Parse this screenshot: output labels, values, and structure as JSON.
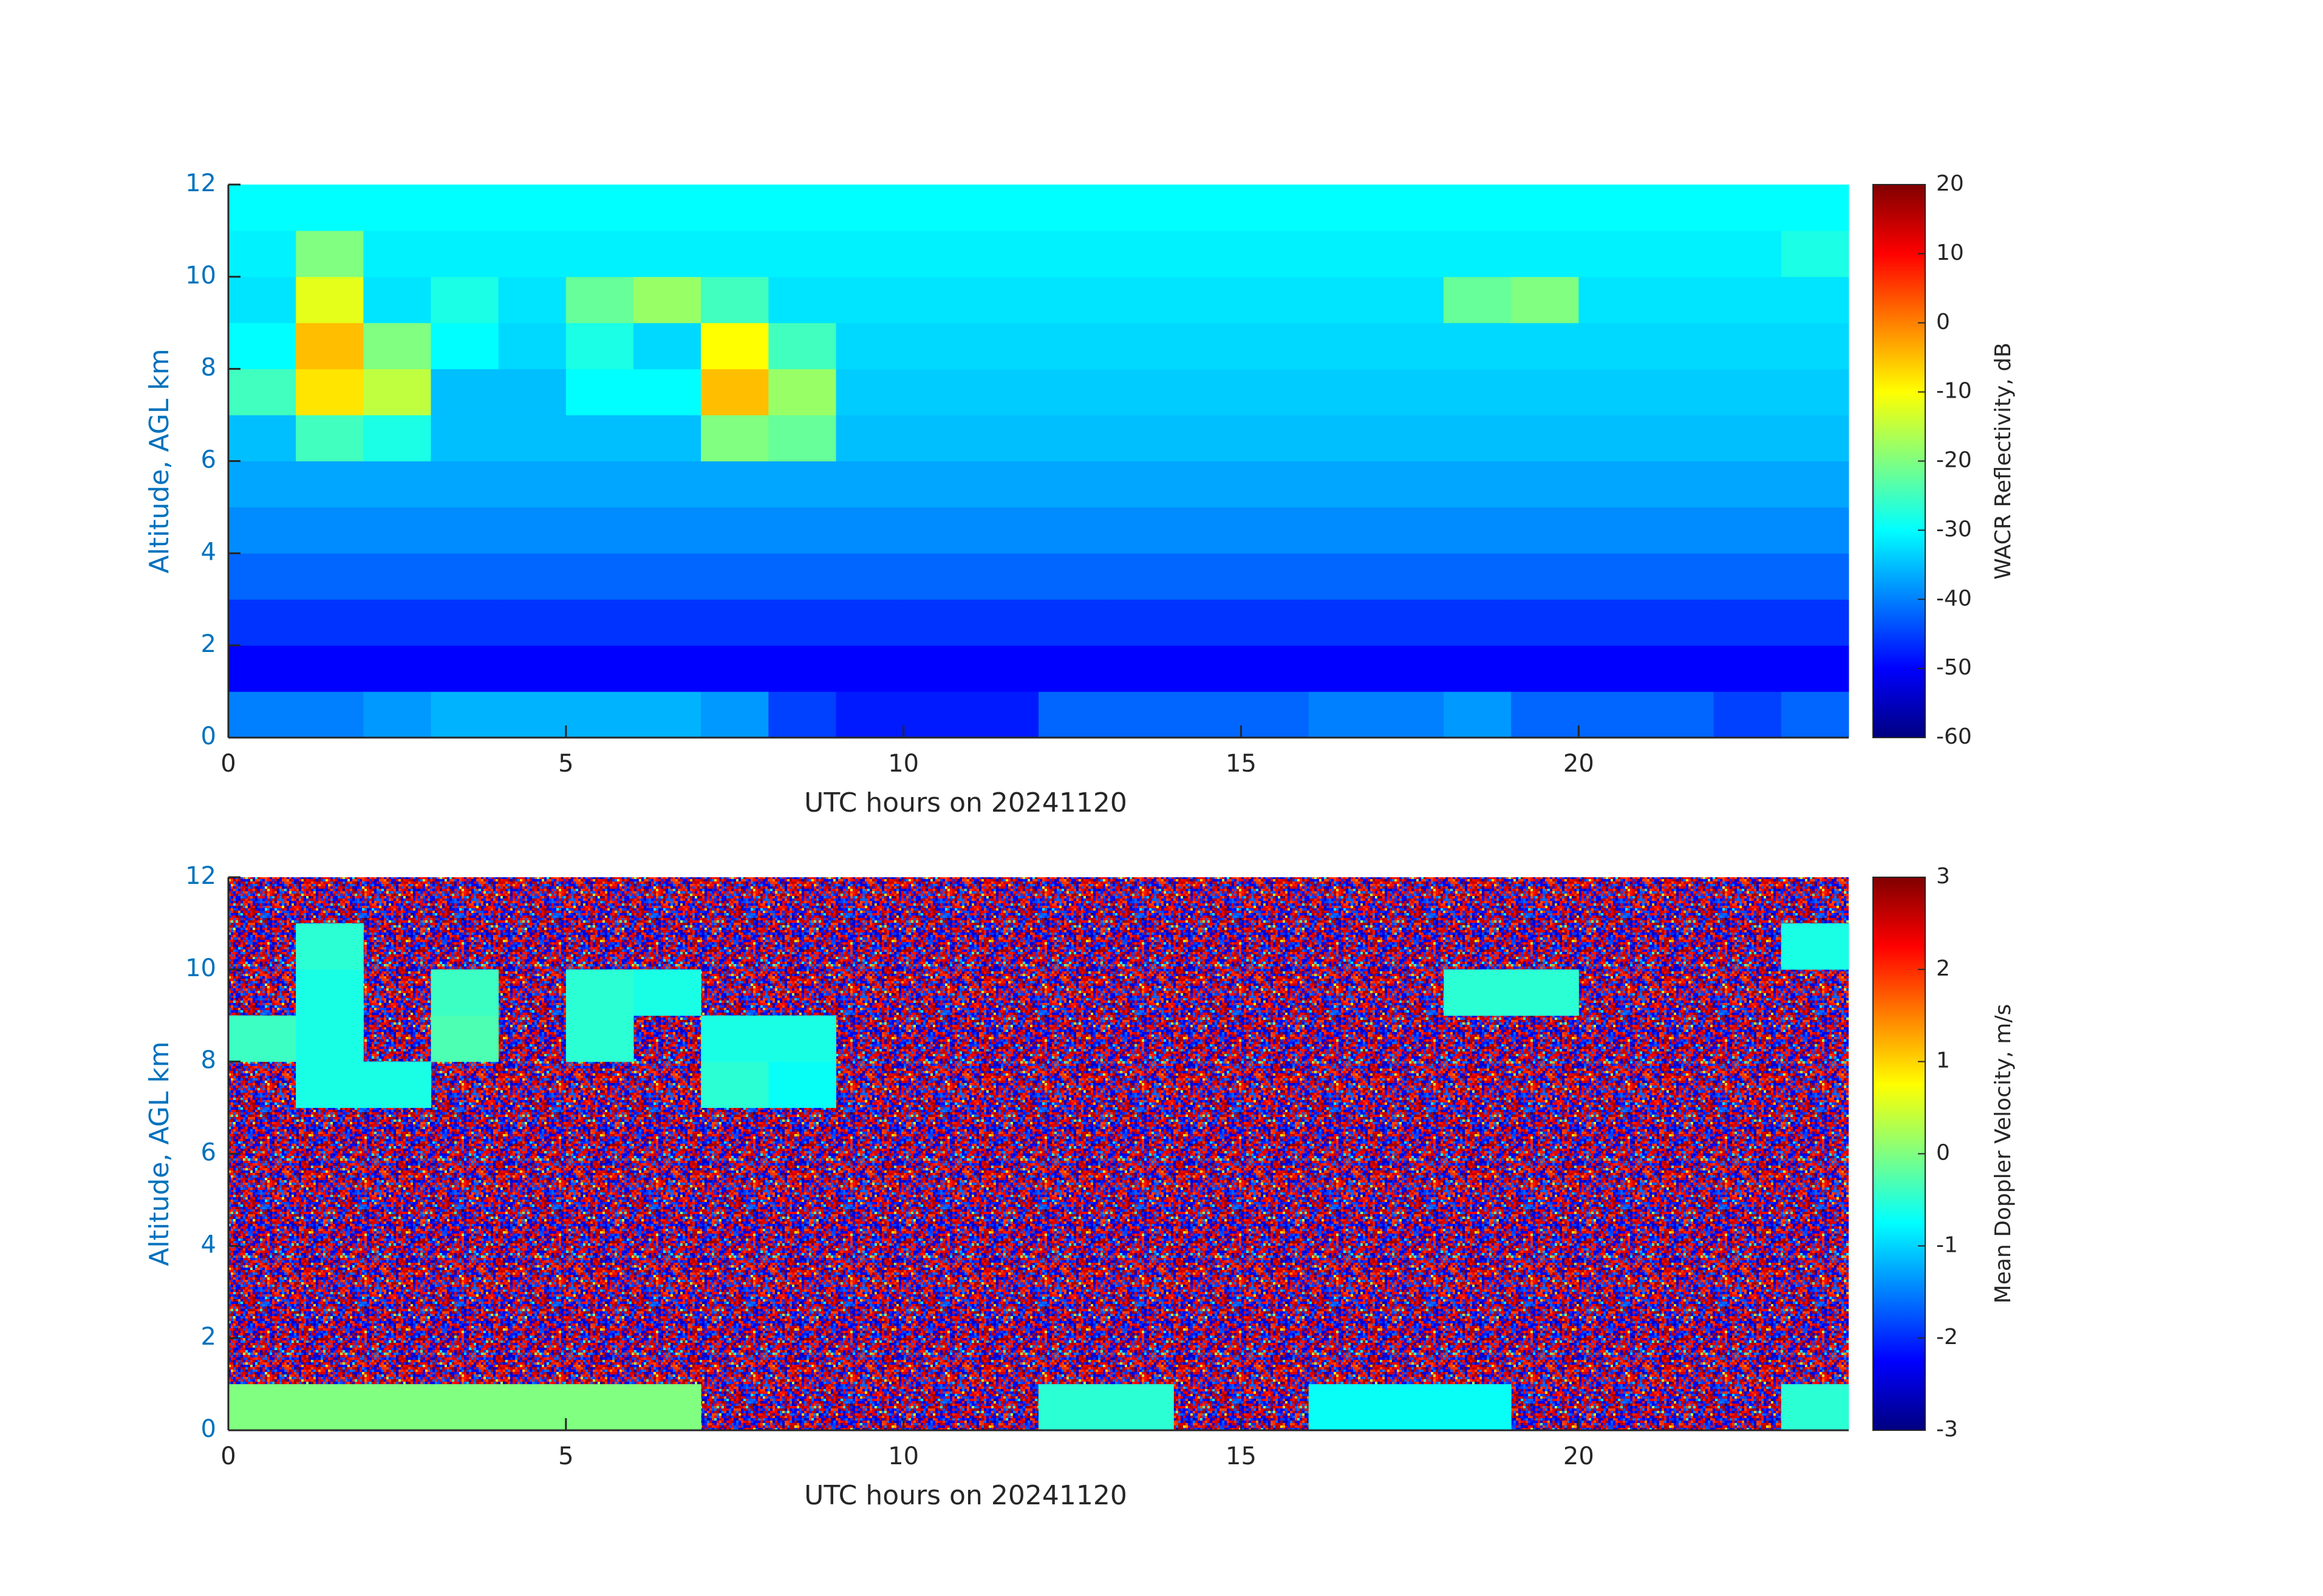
{
  "chart_data": [
    {
      "type": "heatmap",
      "xlabel": "UTC hours on 20241120",
      "ylabel": "Altitude, AGL km",
      "colorbar_label": "WACR Reflectivity, dB",
      "xlim": [
        0,
        24
      ],
      "xticks": [
        0,
        5,
        10,
        15,
        20
      ],
      "ylim": [
        0,
        12
      ],
      "yticks": [
        0,
        2,
        4,
        6,
        8,
        10,
        12
      ],
      "clim": [
        -60,
        20
      ],
      "cticks": [
        -60,
        -50,
        -40,
        -30,
        -20,
        -10,
        0,
        10,
        20
      ],
      "colormap": "jet",
      "x_bins": [
        0,
        1,
        2,
        3,
        4,
        5,
        6,
        7,
        8,
        9,
        10,
        11,
        12,
        13,
        14,
        15,
        16,
        17,
        18,
        19,
        20,
        21,
        22,
        23,
        24
      ],
      "y_bins": [
        0,
        1,
        2,
        3,
        4,
        5,
        6,
        7,
        8,
        9,
        10,
        11,
        12
      ],
      "values": [
        [
          -40,
          -40,
          -38,
          -36,
          -36,
          -36,
          -36,
          -38,
          -45,
          -48,
          -48,
          -48,
          -42,
          -42,
          -42,
          -42,
          -40,
          -40,
          -38,
          -42,
          -42,
          -42,
          -45,
          -42
        ],
        [
          -50,
          -50,
          -50,
          -50,
          -50,
          -50,
          -50,
          -50,
          -50,
          -50,
          -50,
          -50,
          -50,
          -50,
          -50,
          -50,
          -50,
          -50,
          -50,
          -50,
          -50,
          -50,
          -50,
          -50
        ],
        [
          -46,
          -46,
          -46,
          -46,
          -46,
          -46,
          -46,
          -46,
          -46,
          -46,
          -46,
          -46,
          -46,
          -46,
          -46,
          -46,
          -46,
          -46,
          -46,
          -46,
          -46,
          -46,
          -46,
          -46
        ],
        [
          -42,
          -42,
          -42,
          -42,
          -42,
          -42,
          -42,
          -42,
          -42,
          -42,
          -42,
          -42,
          -42,
          -42,
          -42,
          -42,
          -42,
          -42,
          -42,
          -42,
          -42,
          -42,
          -42,
          -42
        ],
        [
          -39,
          -39,
          -39,
          -39,
          -39,
          -39,
          -39,
          -39,
          -39,
          -39,
          -39,
          -39,
          -39,
          -39,
          -39,
          -39,
          -39,
          -39,
          -39,
          -39,
          -39,
          -39,
          -39,
          -39
        ],
        [
          -37,
          -37,
          -37,
          -37,
          -37,
          -37,
          -37,
          -37,
          -37,
          -37,
          -37,
          -37,
          -37,
          -37,
          -37,
          -37,
          -37,
          -37,
          -37,
          -37,
          -37,
          -37,
          -37,
          -37
        ],
        [
          -35,
          -25,
          -28,
          -35,
          -35,
          -35,
          -35,
          -20,
          -22,
          -35,
          -35,
          -35,
          -35,
          -35,
          -35,
          -35,
          -35,
          -35,
          -35,
          -35,
          -35,
          -35,
          -35,
          -35
        ],
        [
          -25,
          -8,
          -15,
          -35,
          -35,
          -30,
          -30,
          -5,
          -18,
          -34,
          -34,
          -34,
          -34,
          -34,
          -34,
          -34,
          -34,
          -34,
          -34,
          -34,
          -34,
          -34,
          -34,
          -34
        ],
        [
          -30,
          -5,
          -20,
          -30,
          -33,
          -28,
          -33,
          -10,
          -25,
          -33,
          -33,
          -33,
          -33,
          -33,
          -33,
          -33,
          -33,
          -33,
          -33,
          -33,
          -33,
          -33,
          -33,
          -33
        ],
        [
          -32,
          -12,
          -32,
          -28,
          -32,
          -22,
          -18,
          -25,
          -32,
          -32,
          -32,
          -32,
          -32,
          -32,
          -32,
          -32,
          -32,
          -32,
          -22,
          -20,
          -32,
          -32,
          -32,
          -32
        ],
        [
          -31,
          -20,
          -31,
          -31,
          -31,
          -31,
          -31,
          -31,
          -31,
          -31,
          -31,
          -31,
          -31,
          -31,
          -31,
          -31,
          -31,
          -31,
          -31,
          -31,
          -31,
          -31,
          -31,
          -28
        ],
        [
          -30,
          -30,
          -30,
          -30,
          -30,
          -30,
          -30,
          -30,
          -30,
          -30,
          -30,
          -30,
          -30,
          -30,
          -30,
          -30,
          -30,
          -30,
          -30,
          -30,
          -30,
          -30,
          -30,
          -30
        ]
      ]
    },
    {
      "type": "heatmap",
      "xlabel": "UTC hours on 20241120",
      "ylabel": "Altitude, AGL km",
      "colorbar_label": "Mean Doppler Velocity, m/s",
      "xlim": [
        0,
        24
      ],
      "xticks": [
        0,
        5,
        10,
        15,
        20
      ],
      "ylim": [
        0,
        12
      ],
      "yticks": [
        0,
        2,
        4,
        6,
        8,
        10,
        12
      ],
      "clim": [
        -3,
        3
      ],
      "cticks": [
        -3,
        -2,
        -1,
        0,
        1,
        2,
        3
      ],
      "colormap": "jet",
      "x_bins": [
        0,
        1,
        2,
        3,
        4,
        5,
        6,
        7,
        8,
        9,
        10,
        11,
        12,
        13,
        14,
        15,
        16,
        17,
        18,
        19,
        20,
        21,
        22,
        23,
        24
      ],
      "y_bins": [
        0,
        1,
        2,
        3,
        4,
        5,
        6,
        7,
        8,
        9,
        10,
        11,
        12
      ],
      "values": [
        [
          0,
          0,
          0,
          0,
          0,
          0,
          0,
          null,
          null,
          null,
          null,
          null,
          -0.5,
          -0.5,
          null,
          null,
          -0.7,
          -0.7,
          -0.7,
          null,
          null,
          null,
          null,
          -0.5
        ],
        [
          null,
          null,
          null,
          null,
          null,
          null,
          null,
          null,
          null,
          null,
          null,
          null,
          null,
          null,
          null,
          null,
          null,
          null,
          null,
          null,
          null,
          null,
          null,
          null
        ],
        [
          null,
          null,
          null,
          null,
          null,
          null,
          null,
          null,
          null,
          null,
          null,
          null,
          null,
          null,
          null,
          null,
          null,
          null,
          null,
          null,
          null,
          null,
          null,
          null
        ],
        [
          null,
          null,
          null,
          null,
          null,
          null,
          null,
          null,
          null,
          null,
          null,
          null,
          null,
          null,
          null,
          null,
          null,
          null,
          null,
          null,
          null,
          null,
          null,
          null
        ],
        [
          null,
          null,
          null,
          null,
          null,
          null,
          null,
          null,
          null,
          null,
          null,
          null,
          null,
          null,
          null,
          null,
          null,
          null,
          null,
          null,
          null,
          null,
          null,
          null
        ],
        [
          null,
          null,
          null,
          null,
          null,
          null,
          null,
          null,
          null,
          null,
          null,
          null,
          null,
          null,
          null,
          null,
          null,
          null,
          null,
          null,
          null,
          null,
          null,
          null
        ],
        [
          null,
          null,
          null,
          null,
          null,
          null,
          null,
          null,
          null,
          null,
          null,
          null,
          null,
          null,
          null,
          null,
          null,
          null,
          null,
          null,
          null,
          null,
          null,
          null
        ],
        [
          null,
          -0.6,
          -0.6,
          null,
          null,
          null,
          null,
          -0.5,
          -0.7,
          null,
          null,
          null,
          null,
          null,
          null,
          null,
          null,
          null,
          null,
          null,
          null,
          null,
          null,
          null
        ],
        [
          -0.4,
          -0.6,
          null,
          -0.3,
          null,
          -0.5,
          null,
          -0.6,
          -0.6,
          null,
          null,
          null,
          null,
          null,
          null,
          null,
          null,
          null,
          null,
          null,
          null,
          null,
          null,
          null
        ],
        [
          null,
          -0.6,
          null,
          -0.4,
          null,
          -0.5,
          -0.6,
          null,
          null,
          null,
          null,
          null,
          null,
          null,
          null,
          null,
          null,
          null,
          -0.5,
          -0.5,
          null,
          null,
          null,
          null
        ],
        [
          null,
          -0.5,
          null,
          null,
          null,
          null,
          null,
          null,
          null,
          null,
          null,
          null,
          null,
          null,
          null,
          null,
          null,
          null,
          null,
          null,
          null,
          null,
          null,
          -0.6
        ],
        [
          null,
          null,
          null,
          null,
          null,
          null,
          null,
          null,
          null,
          null,
          null,
          null,
          null,
          null,
          null,
          null,
          null,
          null,
          null,
          null,
          null,
          null,
          null,
          null
        ]
      ]
    }
  ]
}
